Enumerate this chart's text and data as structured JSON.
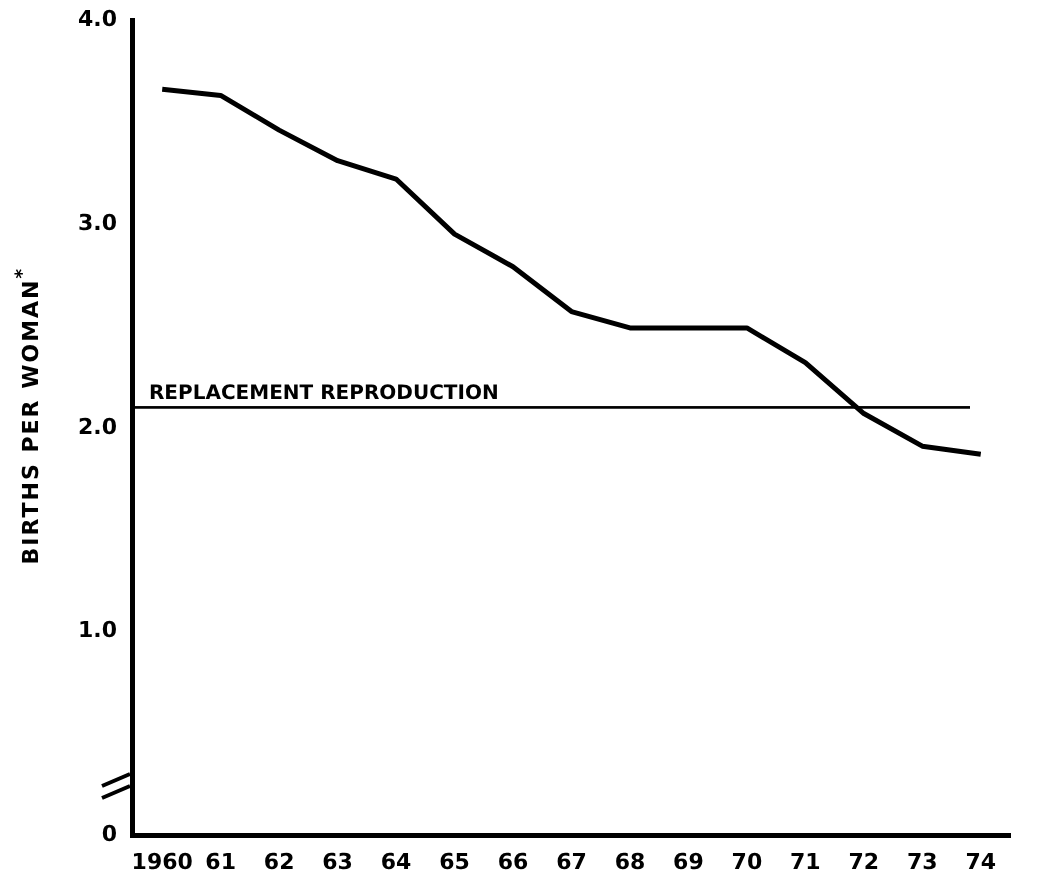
{
  "chart_data": {
    "type": "line",
    "ylabel": "BIRTHS PER WOMAN$^{*}$",
    "categories": [
      "1960",
      "61",
      "62",
      "63",
      "64",
      "65",
      "66",
      "67",
      "68",
      "69",
      "70",
      "71",
      "72",
      "73",
      "74"
    ],
    "series": [
      {
        "color": "#000000",
        "values": [
          3.66,
          3.63,
          3.46,
          3.31,
          3.22,
          2.95,
          2.79,
          2.57,
          2.49,
          2.49,
          2.49,
          2.32,
          2.07,
          1.91,
          1.87
        ]
      }
    ],
    "ylim": [
      0,
      4
    ],
    "yticks": [
      0,
      {
        "value": 1,
        "label": "1.0"
      },
      {
        "value": 2,
        "label": "2.0"
      },
      {
        "value": 3,
        "label": "3.0"
      },
      {
        "value": 4,
        "label": "4.0"
      }
    ],
    "ref_lines": [
      {
        "axis": "y",
        "value": 2.1,
        "label": "REPLACEMENT REPRODUCTION",
        "color": "#000000"
      }
    ],
    "grid": false,
    "legend": false,
    "marker": "none",
    "line_style": "solid"
  }
}
